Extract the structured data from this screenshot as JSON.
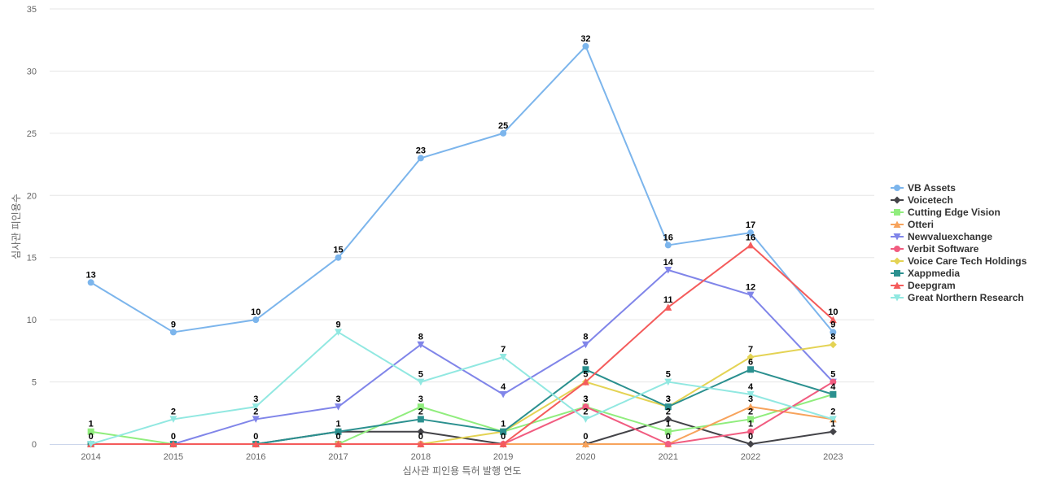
{
  "chart_data": {
    "type": "line",
    "title": "",
    "xlabel": "심사관 피인용 특허 발행 연도",
    "ylabel": "심사관 피인용수",
    "x": [
      "2014",
      "2015",
      "2016",
      "2017",
      "2018",
      "2019",
      "2020",
      "2021",
      "2022",
      "2023"
    ],
    "ylim": [
      0,
      35
    ],
    "yticks": [
      0,
      5,
      10,
      15,
      20,
      25,
      30,
      35
    ],
    "grid": true,
    "legend_position": "right",
    "series": [
      {
        "name": "VB Assets",
        "color": "#7cb5ec",
        "marker": "circle",
        "values": [
          13,
          9,
          10,
          15,
          23,
          25,
          32,
          16,
          17,
          9
        ]
      },
      {
        "name": "Voicetech",
        "color": "#434348",
        "marker": "diamond",
        "values": [
          0,
          0,
          0,
          1,
          1,
          0,
          0,
          2,
          0,
          1
        ]
      },
      {
        "name": "Cutting Edge Vision",
        "color": "#90ed7d",
        "marker": "square",
        "values": [
          1,
          0,
          0,
          0,
          3,
          1,
          3,
          1,
          2,
          4
        ]
      },
      {
        "name": "Otteri",
        "color": "#f7a35c",
        "marker": "triangle",
        "values": [
          0,
          0,
          0,
          0,
          0,
          0,
          0,
          0,
          3,
          2
        ]
      },
      {
        "name": "Newvaluexchange",
        "color": "#8085e9",
        "marker": "triangle-down",
        "values": [
          0,
          0,
          2,
          3,
          8,
          4,
          8,
          14,
          12,
          5
        ]
      },
      {
        "name": "Verbit Software",
        "color": "#f15c80",
        "marker": "circle",
        "values": [
          0,
          0,
          0,
          0,
          0,
          0,
          3,
          0,
          1,
          5
        ]
      },
      {
        "name": "Voice Care Tech Holdings",
        "color": "#e4d354",
        "marker": "diamond",
        "values": [
          0,
          0,
          0,
          0,
          0,
          1,
          5,
          3,
          7,
          8
        ]
      },
      {
        "name": "Xappmedia",
        "color": "#2b908f",
        "marker": "square",
        "values": [
          0,
          0,
          0,
          1,
          2,
          1,
          6,
          3,
          6,
          4
        ]
      },
      {
        "name": "Deepgram",
        "color": "#f45b5b",
        "marker": "triangle",
        "values": [
          0,
          0,
          0,
          0,
          0,
          0,
          5,
          11,
          16,
          10
        ]
      },
      {
        "name": "Great Northern Research",
        "color": "#91e8e1",
        "marker": "triangle-down",
        "values": [
          0,
          2,
          3,
          9,
          5,
          7,
          2,
          5,
          4,
          2
        ]
      }
    ],
    "data_labels": {
      "VB Assets": [
        13,
        9,
        10,
        15,
        23,
        25,
        32,
        16,
        17,
        9
      ],
      "Voicetech": [
        null,
        null,
        null,
        null,
        null,
        null,
        null,
        2,
        0,
        1
      ],
      "Cutting Edge Vision": [
        1,
        null,
        null,
        null,
        3,
        null,
        3,
        1,
        2,
        4
      ],
      "Otteri": [
        0,
        0,
        null,
        null,
        null,
        null,
        0,
        0,
        3,
        2
      ],
      "Newvaluexchange": [
        null,
        null,
        2,
        3,
        8,
        4,
        8,
        14,
        12,
        null
      ],
      "Verbit Software": [
        null,
        null,
        null,
        null,
        0,
        0,
        3,
        null,
        1,
        5
      ],
      "Voice Care Tech Holdings": [
        null,
        null,
        null,
        null,
        null,
        null,
        5,
        3,
        7,
        8
      ],
      "Xappmedia": [
        null,
        null,
        0,
        1,
        2,
        1,
        6,
        3,
        6,
        null
      ],
      "Deepgram": [
        null,
        null,
        null,
        0,
        null,
        null,
        null,
        11,
        16,
        10
      ],
      "Great Northern Research": [
        null,
        2,
        3,
        9,
        5,
        7,
        2,
        5,
        4,
        null
      ]
    }
  }
}
